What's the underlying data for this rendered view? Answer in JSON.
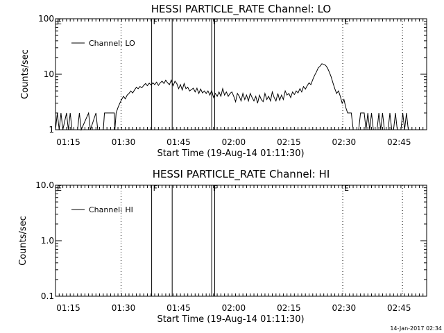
{
  "chart_data": [
    {
      "type": "line",
      "title": "HESSI PARTICLE_RATE Channel: LO",
      "xlabel": "Start Time (19-Aug-14 01:11:30)",
      "ylabel": "Counts/sec",
      "x_ticks": [
        "01:15",
        "01:30",
        "01:45",
        "02:00",
        "02:15",
        "02:30",
        "02:45"
      ],
      "y_ticks": [
        "1",
        "10",
        "100"
      ],
      "ylim": [
        1,
        100
      ],
      "xlim": [
        "01:11:30",
        "02:52:30"
      ],
      "y_scale": "log",
      "legend": {
        "position": "top-left",
        "entries": [
          "Channel: LO"
        ]
      },
      "markers": [
        {
          "label": "E",
          "time": "01:11:30",
          "style": "none"
        },
        {
          "label": "",
          "time": "01:29:20",
          "style": "dotted"
        },
        {
          "label": "F",
          "time": "01:37:40",
          "style": "solid"
        },
        {
          "label": "",
          "time": "01:43:15",
          "style": "solid"
        },
        {
          "label": "F",
          "time": "01:54:00",
          "style": "solid"
        },
        {
          "label": "",
          "time": "01:54:50",
          "style": "solid"
        },
        {
          "label": "E",
          "time": "02:29:40",
          "style": "dotted"
        },
        {
          "label": "",
          "time": "02:45:55",
          "style": "dotted"
        }
      ],
      "series": [
        {
          "name": "Channel: LO",
          "points": [
            [
              "01:11:30",
              1
            ],
            [
              "01:12:00",
              2
            ],
            [
              "01:12:30",
              1
            ],
            [
              "01:13:00",
              2
            ],
            [
              "01:13:30",
              1
            ],
            [
              "01:14:30",
              2
            ],
            [
              "01:15:00",
              1
            ],
            [
              "01:15:30",
              2
            ],
            [
              "01:16:00",
              1
            ],
            [
              "01:17:30",
              1
            ],
            [
              "01:18:00",
              2
            ],
            [
              "01:18:30",
              1
            ],
            [
              "01:20:30",
              2
            ],
            [
              "01:21:00",
              1
            ],
            [
              "01:22:30",
              2
            ],
            [
              "01:23:00",
              1
            ],
            [
              "01:24:30",
              1
            ],
            [
              "01:24:50",
              2
            ],
            [
              "01:27:30",
              2
            ],
            [
              "01:27:40",
              1
            ],
            [
              "01:28:00",
              2
            ],
            [
              "01:28:30",
              2.5
            ],
            [
              "01:29:00",
              3
            ],
            [
              "01:29:30",
              3.5
            ],
            [
              "01:30:00",
              4
            ],
            [
              "01:30:30",
              3.6
            ],
            [
              "01:31:00",
              4.2
            ],
            [
              "01:31:30",
              4.5
            ],
            [
              "01:32:00",
              5
            ],
            [
              "01:32:30",
              4.6
            ],
            [
              "01:33:00",
              5.2
            ],
            [
              "01:33:30",
              5.8
            ],
            [
              "01:34:00",
              5.5
            ],
            [
              "01:34:30",
              6
            ],
            [
              "01:35:00",
              5.7
            ],
            [
              "01:35:30",
              6.3
            ],
            [
              "01:36:00",
              6.8
            ],
            [
              "01:36:30",
              6.2
            ],
            [
              "01:37:00",
              6.9
            ],
            [
              "01:37:30",
              6.4
            ],
            [
              "01:38:00",
              7
            ],
            [
              "01:38:30",
              6.5
            ],
            [
              "01:39:00",
              7.2
            ],
            [
              "01:39:30",
              6.3
            ],
            [
              "01:40:00",
              7
            ],
            [
              "01:40:30",
              7.5
            ],
            [
              "01:41:00",
              6.8
            ],
            [
              "01:41:30",
              7.8
            ],
            [
              "01:42:00",
              7
            ],
            [
              "01:42:30",
              6.5
            ],
            [
              "01:43:00",
              7.8
            ],
            [
              "01:43:30",
              6.2
            ],
            [
              "01:44:00",
              7.5
            ],
            [
              "01:44:30",
              6.8
            ],
            [
              "01:45:00",
              5.5
            ],
            [
              "01:45:30",
              6.5
            ],
            [
              "01:46:00",
              5.2
            ],
            [
              "01:46:30",
              6.8
            ],
            [
              "01:47:00",
              5.5
            ],
            [
              "01:47:30",
              5.8
            ],
            [
              "01:48:00",
              5
            ],
            [
              "01:48:30",
              5.3
            ],
            [
              "01:49:00",
              5.6
            ],
            [
              "01:49:30",
              4.8
            ],
            [
              "01:50:00",
              5.6
            ],
            [
              "01:50:30",
              4.5
            ],
            [
              "01:51:00",
              5.4
            ],
            [
              "01:51:30",
              4.6
            ],
            [
              "01:52:00",
              5
            ],
            [
              "01:52:30",
              4.5
            ],
            [
              "01:53:00",
              5
            ],
            [
              "01:53:30",
              4.2
            ],
            [
              "01:54:00",
              5.1
            ],
            [
              "01:54:30",
              3.8
            ],
            [
              "01:55:00",
              4.5
            ],
            [
              "01:55:30",
              4
            ],
            [
              "01:56:00",
              4.8
            ],
            [
              "01:56:30",
              4
            ],
            [
              "01:57:00",
              5.5
            ],
            [
              "01:57:30",
              4.2
            ],
            [
              "01:58:00",
              4.8
            ],
            [
              "01:58:30",
              4
            ],
            [
              "01:59:00",
              4.5
            ],
            [
              "01:59:30",
              4.8
            ],
            [
              "02:00:00",
              4
            ],
            [
              "02:00:30",
              3.2
            ],
            [
              "02:01:00",
              4.5
            ],
            [
              "02:01:30",
              4
            ],
            [
              "02:02:00",
              3.3
            ],
            [
              "02:02:30",
              4.5
            ],
            [
              "02:03:00",
              3.5
            ],
            [
              "02:03:30",
              4.2
            ],
            [
              "02:04:00",
              3.3
            ],
            [
              "02:04:30",
              4.5
            ],
            [
              "02:05:00",
              3.8
            ],
            [
              "02:05:30",
              3.3
            ],
            [
              "02:06:00",
              4
            ],
            [
              "02:06:30",
              3
            ],
            [
              "02:07:00",
              4.2
            ],
            [
              "02:07:30",
              3.5
            ],
            [
              "02:08:00",
              3.2
            ],
            [
              "02:08:30",
              4.5
            ],
            [
              "02:09:00",
              3.5
            ],
            [
              "02:09:30",
              4
            ],
            [
              "02:10:00",
              3.3
            ],
            [
              "02:10:30",
              4.8
            ],
            [
              "02:11:00",
              3.8
            ],
            [
              "02:11:30",
              3.3
            ],
            [
              "02:12:00",
              4.5
            ],
            [
              "02:12:30",
              3.4
            ],
            [
              "02:13:00",
              4.2
            ],
            [
              "02:13:30",
              3.5
            ],
            [
              "02:14:00",
              5
            ],
            [
              "02:14:30",
              4.2
            ],
            [
              "02:15:00",
              4.5
            ],
            [
              "02:15:30",
              3.8
            ],
            [
              "02:16:00",
              4.8
            ],
            [
              "02:16:30",
              4.3
            ],
            [
              "02:17:00",
              5
            ],
            [
              "02:17:30",
              4.6
            ],
            [
              "02:18:00",
              5.5
            ],
            [
              "02:18:30",
              4.8
            ],
            [
              "02:19:00",
              6
            ],
            [
              "02:19:30",
              5.4
            ],
            [
              "02:20:00",
              6.2
            ],
            [
              "02:20:30",
              7
            ],
            [
              "02:21:00",
              6.5
            ],
            [
              "02:21:30",
              8
            ],
            [
              "02:22:00",
              9.5
            ],
            [
              "02:22:30",
              11
            ],
            [
              "02:23:00",
              13
            ],
            [
              "02:23:30",
              14
            ],
            [
              "02:24:00",
              15.5
            ],
            [
              "02:24:30",
              15
            ],
            [
              "02:25:00",
              14.5
            ],
            [
              "02:25:30",
              13
            ],
            [
              "02:26:00",
              11
            ],
            [
              "02:26:30",
              9
            ],
            [
              "02:27:00",
              7
            ],
            [
              "02:27:30",
              5.5
            ],
            [
              "02:28:00",
              4.5
            ],
            [
              "02:28:30",
              5
            ],
            [
              "02:29:00",
              4
            ],
            [
              "02:29:30",
              3
            ],
            [
              "02:30:00",
              3.5
            ],
            [
              "02:30:30",
              2.5
            ],
            [
              "02:31:00",
              2
            ],
            [
              "02:32:00",
              2
            ],
            [
              "02:32:30",
              1
            ],
            [
              "02:34:00",
              1
            ],
            [
              "02:34:30",
              2
            ],
            [
              "02:35:30",
              2
            ],
            [
              "02:36:00",
              1
            ],
            [
              "02:36:30",
              2
            ],
            [
              "02:37:00",
              1
            ],
            [
              "02:37:30",
              2
            ],
            [
              "02:38:00",
              1
            ],
            [
              "02:39:00",
              1
            ],
            [
              "02:39:30",
              2
            ],
            [
              "02:40:00",
              1
            ],
            [
              "02:40:30",
              2
            ],
            [
              "02:41:00",
              1
            ],
            [
              "02:42:00",
              1
            ],
            [
              "02:42:30",
              2
            ],
            [
              "02:43:00",
              1
            ],
            [
              "02:43:30",
              1
            ],
            [
              "02:44:00",
              2
            ],
            [
              "02:44:30",
              1
            ],
            [
              "02:45:30",
              1
            ],
            [
              "02:46:00",
              2
            ],
            [
              "02:46:30",
              1
            ],
            [
              "02:47:00",
              2
            ],
            [
              "02:47:30",
              1
            ]
          ]
        }
      ]
    },
    {
      "type": "line",
      "title": "HESSI PARTICLE_RATE Channel: HI",
      "xlabel": "Start Time (19-Aug-14 01:11:30)",
      "ylabel": "Counts/sec",
      "x_ticks": [
        "01:15",
        "01:30",
        "01:45",
        "02:00",
        "02:15",
        "02:30",
        "02:45"
      ],
      "y_ticks": [
        "0.1",
        "1.0",
        "10.0"
      ],
      "ylim": [
        0.1,
        10
      ],
      "xlim": [
        "01:11:30",
        "02:52:30"
      ],
      "y_scale": "log",
      "legend": {
        "position": "top-left",
        "entries": [
          "Channel: HI"
        ]
      },
      "markers": [
        {
          "label": "E",
          "time": "01:11:30",
          "style": "none"
        },
        {
          "label": "",
          "time": "01:29:20",
          "style": "dotted"
        },
        {
          "label": "F",
          "time": "01:37:40",
          "style": "solid"
        },
        {
          "label": "",
          "time": "01:43:15",
          "style": "solid"
        },
        {
          "label": "F",
          "time": "01:54:00",
          "style": "solid"
        },
        {
          "label": "",
          "time": "01:54:50",
          "style": "solid"
        },
        {
          "label": "E",
          "time": "02:29:40",
          "style": "dotted"
        },
        {
          "label": "",
          "time": "02:45:55",
          "style": "dotted"
        }
      ],
      "series": [
        {
          "name": "Channel: HI",
          "points": []
        }
      ]
    }
  ],
  "footer": {
    "timestamp": "14-Jan-2017 02:34"
  }
}
